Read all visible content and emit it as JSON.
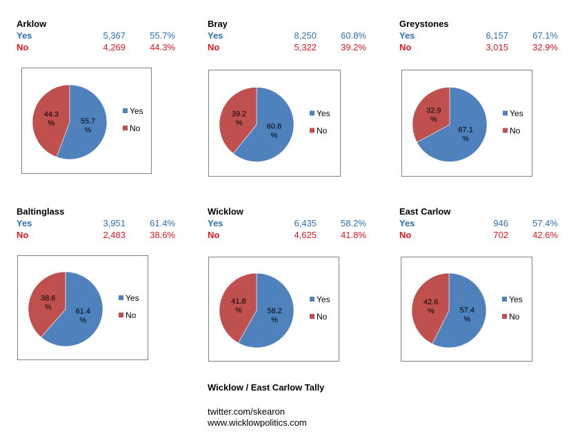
{
  "colors": {
    "yes": "#4F81BD",
    "no": "#C0504D",
    "yes_text": "#2E6FB5",
    "no_text": "#E2161E"
  },
  "chart_data": [
    {
      "type": "pie",
      "title": "Arklow",
      "categories": [
        "Yes",
        "No"
      ],
      "counts": [
        "5,367",
        "4,269"
      ],
      "pct_text": [
        "55.7%",
        "44.3%"
      ],
      "values": [
        55.7,
        44.3
      ],
      "labels": [
        "55.7 %",
        "44.3 %"
      ],
      "legend": [
        "Yes",
        "No"
      ]
    },
    {
      "type": "pie",
      "title": "Bray",
      "categories": [
        "Yes",
        "No"
      ],
      "counts": [
        "8,250",
        "5,322"
      ],
      "pct_text": [
        "60.8%",
        "39.2%"
      ],
      "values": [
        60.8,
        39.2
      ],
      "labels": [
        "60.8 %",
        "39.2 %"
      ],
      "legend": [
        "Yes",
        "No"
      ]
    },
    {
      "type": "pie",
      "title": "Greystones",
      "categories": [
        "Yes",
        "No"
      ],
      "counts": [
        "6,157",
        "3,015"
      ],
      "pct_text": [
        "67.1%",
        "32.9%"
      ],
      "values": [
        67.1,
        32.9
      ],
      "labels": [
        "67.1 %",
        "32.9 %"
      ],
      "legend": [
        "Yes",
        "No"
      ]
    },
    {
      "type": "pie",
      "title": "Baltinglass",
      "categories": [
        "Yes",
        "No"
      ],
      "counts": [
        "3,951",
        "2,483"
      ],
      "pct_text": [
        "61.4%",
        "38.6%"
      ],
      "values": [
        61.4,
        38.6
      ],
      "labels": [
        "61.4 %",
        "38.6 %"
      ],
      "legend": [
        "Yes",
        "No"
      ]
    },
    {
      "type": "pie",
      "title": "Wicklow",
      "categories": [
        "Yes",
        "No"
      ],
      "counts": [
        "6,435",
        "4,625"
      ],
      "pct_text": [
        "58.2%",
        "41.8%"
      ],
      "values": [
        58.2,
        41.8
      ],
      "labels": [
        "58.2 %",
        "41.8 %"
      ],
      "legend": [
        "Yes",
        "No"
      ]
    },
    {
      "type": "pie",
      "title": "East Carlow",
      "categories": [
        "Yes",
        "No"
      ],
      "counts": [
        "946",
        "702"
      ],
      "pct_text": [
        "57.4%",
        "42.6%"
      ],
      "values": [
        57.4,
        42.6
      ],
      "labels": [
        "57.4 %",
        "42.6 %"
      ],
      "legend": [
        "Yes",
        "No"
      ]
    }
  ],
  "footer": {
    "heading": "Wicklow / East Carlow Tally",
    "twitter": "twitter.com/skearon",
    "website": "www.wicklowpolitics.com"
  }
}
